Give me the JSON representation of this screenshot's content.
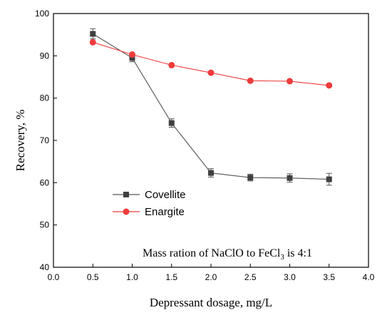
{
  "chart_data": {
    "type": "line",
    "xlabel": "Depressant dosage, mg/L",
    "ylabel": "Recovery, %",
    "xlim": [
      0.0,
      4.0
    ],
    "ylim": [
      40,
      100
    ],
    "x_ticks": [
      0.0,
      0.5,
      1.0,
      1.5,
      2.0,
      2.5,
      3.0,
      3.5,
      4.0
    ],
    "x_tick_labels": [
      "0.0",
      "0.5",
      "1.0",
      "1.5",
      "2.0",
      "2.5",
      "3.0",
      "3.5",
      "4.0"
    ],
    "y_ticks": [
      40,
      50,
      60,
      70,
      80,
      90,
      100
    ],
    "y_tick_labels": [
      "40",
      "50",
      "60",
      "70",
      "80",
      "90",
      "100"
    ],
    "grid": false,
    "legend_position": "center-left",
    "x": [
      0.5,
      1.0,
      1.5,
      2.0,
      2.5,
      3.0,
      3.5
    ],
    "series": [
      {
        "name": "Covellite",
        "marker": "square",
        "color": "#404040",
        "line_color": "#555555",
        "values": [
          95.2,
          89.5,
          74.1,
          62.3,
          61.2,
          61.1,
          60.8
        ],
        "errors": [
          1.2,
          0.9,
          1.0,
          1.0,
          0.8,
          1.0,
          1.4
        ]
      },
      {
        "name": "Enargite",
        "marker": "circle",
        "color": "#ee3b3b",
        "line_color": "#ee3b3b",
        "values": [
          93.2,
          90.3,
          87.8,
          86.0,
          84.1,
          84.0,
          83.0
        ],
        "errors": [
          0,
          0,
          0,
          0,
          0,
          0,
          0
        ]
      }
    ],
    "annotation": {
      "prefix": "Mass ration of NaClO to FeCl",
      "subscript": "3",
      "suffix": " is 4:1"
    }
  }
}
